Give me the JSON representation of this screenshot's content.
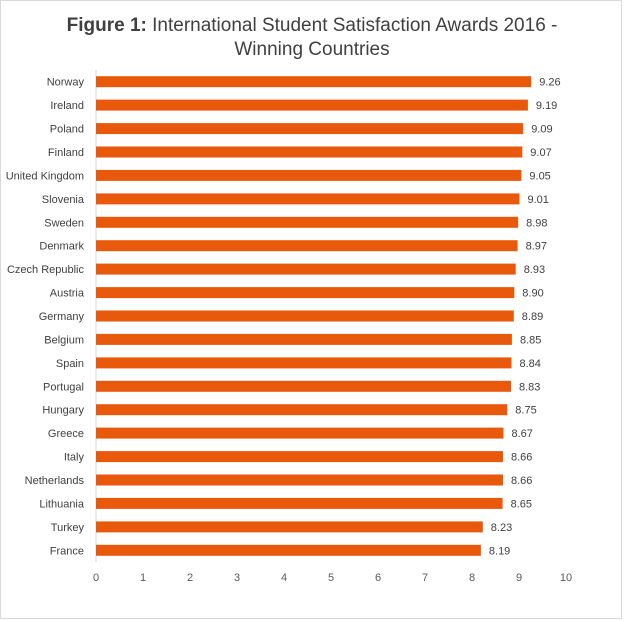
{
  "chart_data": {
    "type": "bar",
    "orientation": "horizontal",
    "title_prefix": "Figure 1:",
    "title_line1": " International Student Satisfaction Awards 2016 -",
    "title_line2": "Winning Countries",
    "categories": [
      "Norway",
      "Ireland",
      "Poland",
      "Finland",
      "United Kingdom",
      "Slovenia",
      "Sweden",
      "Denmark",
      "Czech Republic",
      "Austria",
      "Germany",
      "Belgium",
      "Spain",
      "Portugal",
      "Hungary",
      "Greece",
      "Italy",
      "Netherlands",
      "Lithuania",
      "Turkey",
      "France"
    ],
    "values": [
      9.26,
      9.19,
      9.09,
      9.07,
      9.05,
      9.01,
      8.98,
      8.97,
      8.93,
      8.9,
      8.89,
      8.85,
      8.84,
      8.83,
      8.75,
      8.67,
      8.66,
      8.66,
      8.65,
      8.23,
      8.19
    ],
    "data_labels": [
      "9.26",
      "9.19",
      "9.09",
      "9.07",
      "9.05",
      "9.01",
      "8.98",
      "8.97",
      "8.93",
      "8.90",
      "8.89",
      "8.85",
      "8.84",
      "8.83",
      "8.75",
      "8.67",
      "8.66",
      "8.66",
      "8.65",
      "8.23",
      "8.19"
    ],
    "xlim": [
      0,
      10
    ],
    "xticks": [
      "0",
      "1",
      "2",
      "3",
      "4",
      "5",
      "6",
      "7",
      "8",
      "9",
      "10"
    ],
    "xlabel": "",
    "ylabel": "",
    "grid": false,
    "bar_color": "#e8590c"
  }
}
